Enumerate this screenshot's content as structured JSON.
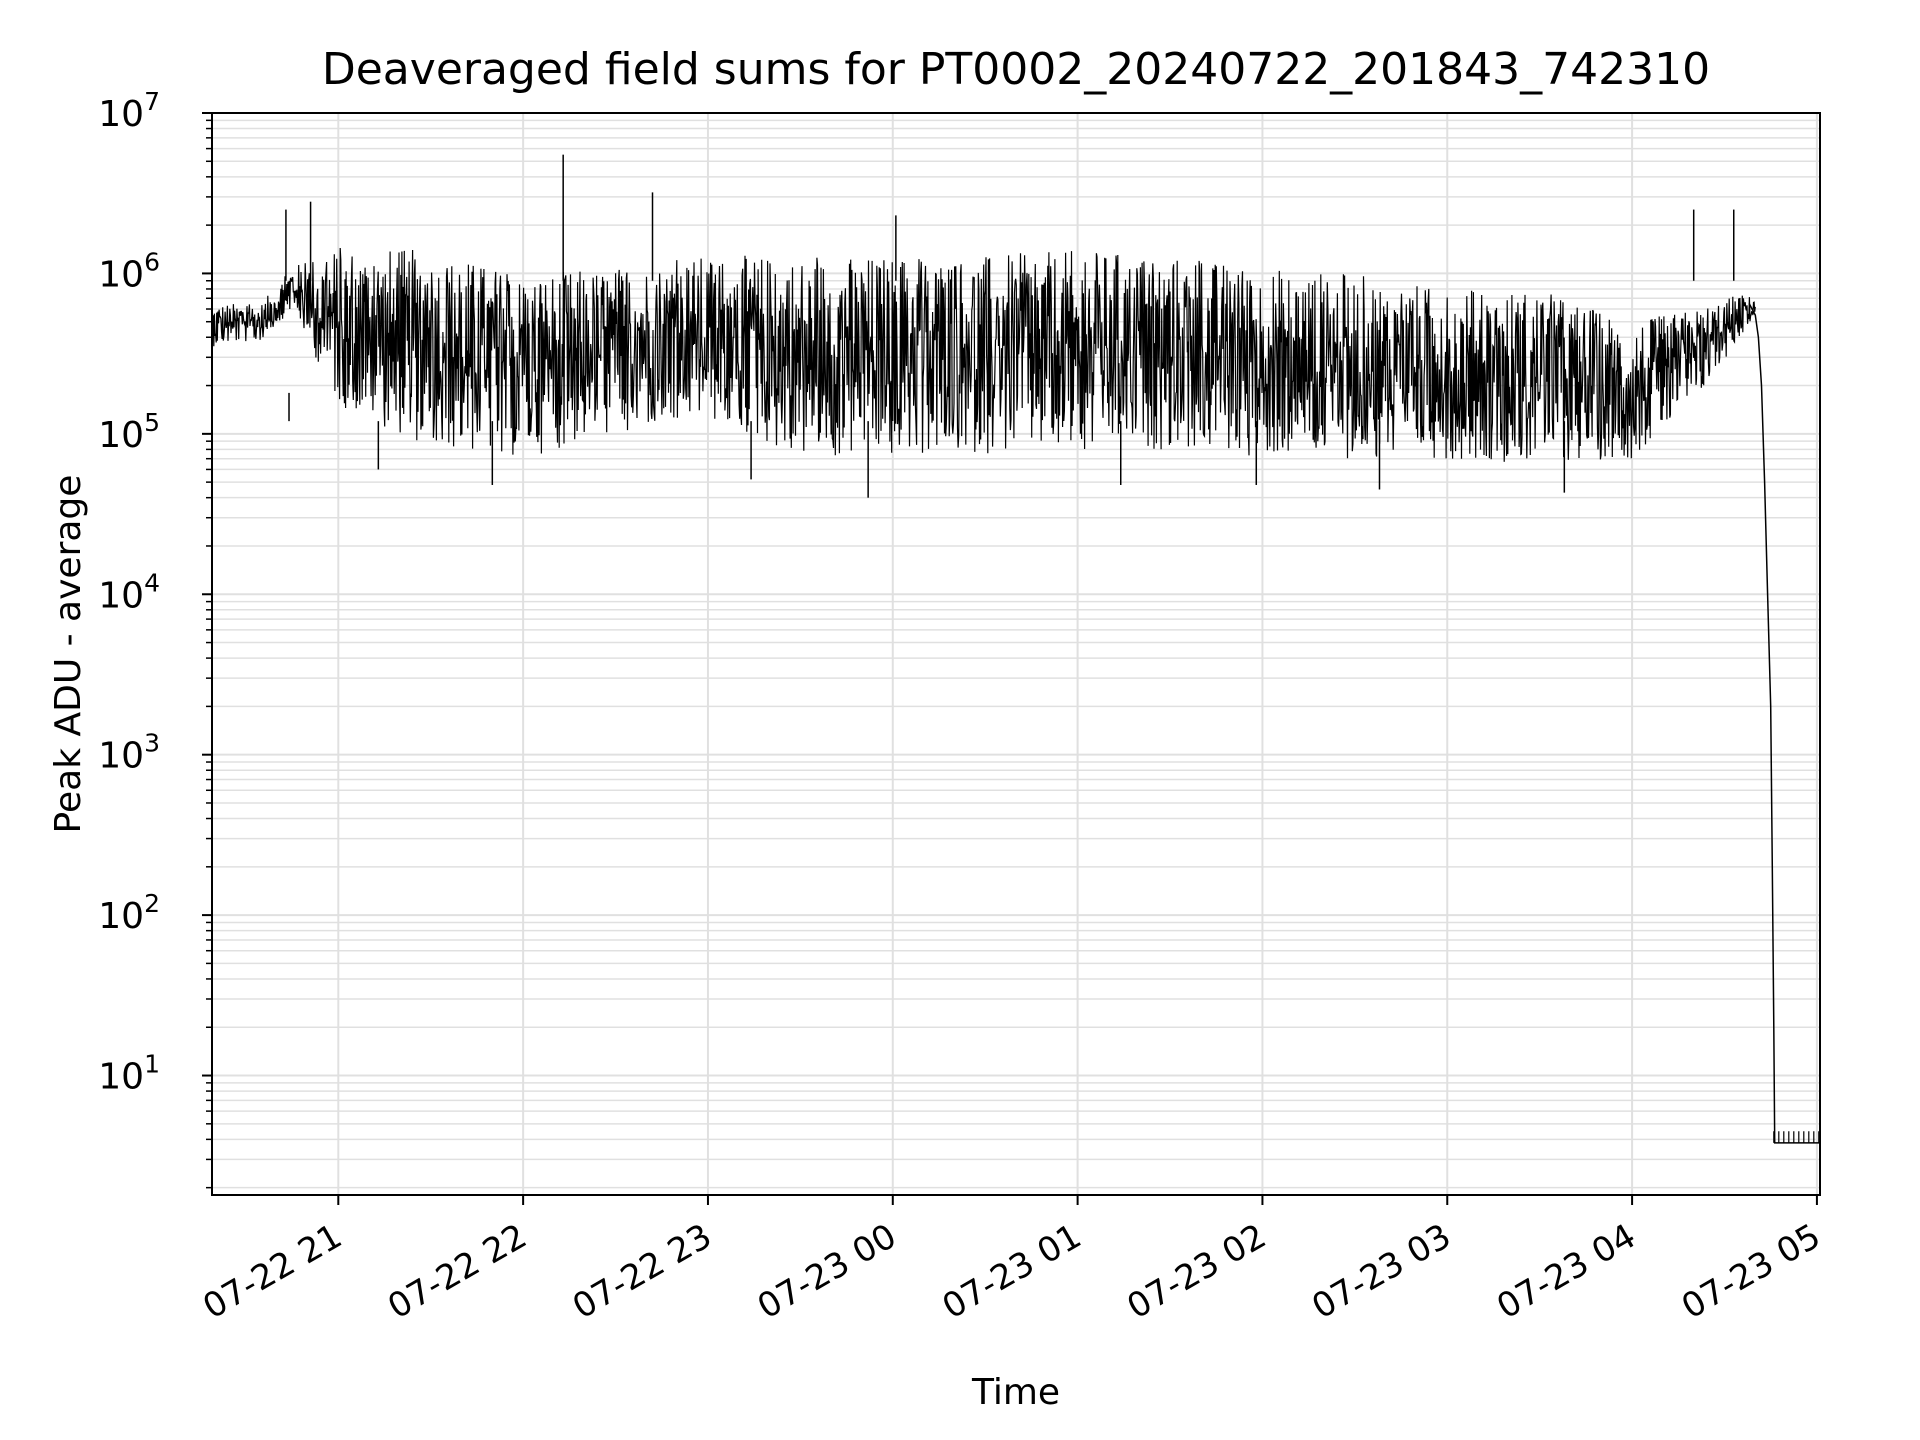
{
  "chart_data": {
    "type": "line",
    "title": "Deaveraged field sums for PT0002_20240722_201843_742310",
    "xlabel": "Time",
    "ylabel": "Peak ADU - average",
    "xscale": "time",
    "yscale": "log",
    "grid": true,
    "legend": "none",
    "xlim": [
      "07-22 20:19",
      "07-23 05:01"
    ],
    "ylim": [
      1.8,
      10000000
    ],
    "x_ticks": [
      "07-22 21",
      "07-22 22",
      "07-22 23",
      "07-23 00",
      "07-23 01",
      "07-23 02",
      "07-23 03",
      "07-23 04",
      "07-23 05"
    ],
    "y_ticks": [
      {
        "base": "10",
        "exp": "1",
        "value": 10
      },
      {
        "base": "10",
        "exp": "2",
        "value": 100
      },
      {
        "base": "10",
        "exp": "3",
        "value": 1000
      },
      {
        "base": "10",
        "exp": "4",
        "value": 10000
      },
      {
        "base": "10",
        "exp": "5",
        "value": 100000
      },
      {
        "base": "10",
        "exp": "6",
        "value": 1000000
      },
      {
        "base": "10",
        "exp": "7",
        "value": 10000000
      }
    ],
    "colors": {
      "line": "#000000",
      "grid": "#e0e0e0",
      "axes": "#000000"
    },
    "series": [
      {
        "envelope": [
          {
            "x": "07-22 20:19",
            "low": 350000,
            "high": 650000
          },
          {
            "x": "07-22 20:35",
            "low": 380000,
            "high": 650000
          },
          {
            "x": "07-22 20:45",
            "low": 600000,
            "high": 1100000
          },
          {
            "x": "07-22 21:00",
            "low": 150000,
            "high": 1500000
          },
          {
            "x": "07-22 21:30",
            "low": 80000,
            "high": 1400000
          },
          {
            "x": "07-22 22:00",
            "low": 70000,
            "high": 1000000
          },
          {
            "x": "07-22 22:30",
            "low": 100000,
            "high": 1100000
          },
          {
            "x": "07-22 23:00",
            "low": 120000,
            "high": 1300000
          },
          {
            "x": "07-22 23:30",
            "low": 70000,
            "high": 1300000
          },
          {
            "x": "07-23 00:00",
            "low": 70000,
            "high": 1300000
          },
          {
            "x": "07-23 00:30",
            "low": 75000,
            "high": 1300000
          },
          {
            "x": "07-23 01:00",
            "low": 75000,
            "high": 1400000
          },
          {
            "x": "07-23 01:30",
            "low": 80000,
            "high": 1300000
          },
          {
            "x": "07-23 02:00",
            "low": 70000,
            "high": 1100000
          },
          {
            "x": "07-23 02:30",
            "low": 70000,
            "high": 1000000
          },
          {
            "x": "07-23 03:00",
            "low": 70000,
            "high": 800000
          },
          {
            "x": "07-23 03:30",
            "low": 65000,
            "high": 800000
          },
          {
            "x": "07-23 04:00",
            "low": 70000,
            "high": 500000
          },
          {
            "x": "07-23 04:20",
            "low": 150000,
            "high": 600000
          },
          {
            "x": "07-23 04:35",
            "low": 400000,
            "high": 750000
          },
          {
            "x": "07-23 04:40",
            "low": 550000,
            "high": 700000
          }
        ],
        "spikes": [
          {
            "x": "07-22 20:43",
            "y": 2500000
          },
          {
            "x": "07-22 20:44",
            "y": 180000
          },
          {
            "x": "07-22 20:51",
            "y": 2800000
          },
          {
            "x": "07-22 21:13",
            "y": 60000
          },
          {
            "x": "07-22 21:50",
            "y": 48000
          },
          {
            "x": "07-22 22:13",
            "y": 5500000
          },
          {
            "x": "07-22 22:42",
            "y": 3200000
          },
          {
            "x": "07-22 23:14",
            "y": 52000
          },
          {
            "x": "07-22 23:52",
            "y": 40000
          },
          {
            "x": "07-23 00:01",
            "y": 2300000
          },
          {
            "x": "07-23 01:14",
            "y": 48000
          },
          {
            "x": "07-23 01:58",
            "y": 48000
          },
          {
            "x": "07-23 02:38",
            "y": 45000
          },
          {
            "x": "07-23 03:38",
            "y": 43000
          },
          {
            "x": "07-23 04:20",
            "y": 2500000
          },
          {
            "x": "07-23 04:33",
            "y": 2500000
          }
        ],
        "tail": [
          {
            "x": "07-23 04:38",
            "y": 650000
          },
          {
            "x": "07-23 04:40",
            "y": 550000
          },
          {
            "x": "07-23 04:41",
            "y": 400000
          },
          {
            "x": "07-23 04:42",
            "y": 200000
          },
          {
            "x": "07-23 04:43",
            "y": 50000
          },
          {
            "x": "07-23 04:44",
            "y": 10000
          },
          {
            "x": "07-23 04:45",
            "y": 2000
          },
          {
            "x": "07-23 04:45.5",
            "y": 200
          },
          {
            "x": "07-23 04:46",
            "y": 20
          },
          {
            "x": "07-23 04:46.3",
            "y": 3.8
          },
          {
            "x": "07-23 05:01",
            "y": 3.8
          }
        ],
        "floor": {
          "from": "07-23 04:46",
          "to": "07-23 05:01",
          "low": 3.8,
          "high": 4.5
        }
      }
    ]
  }
}
